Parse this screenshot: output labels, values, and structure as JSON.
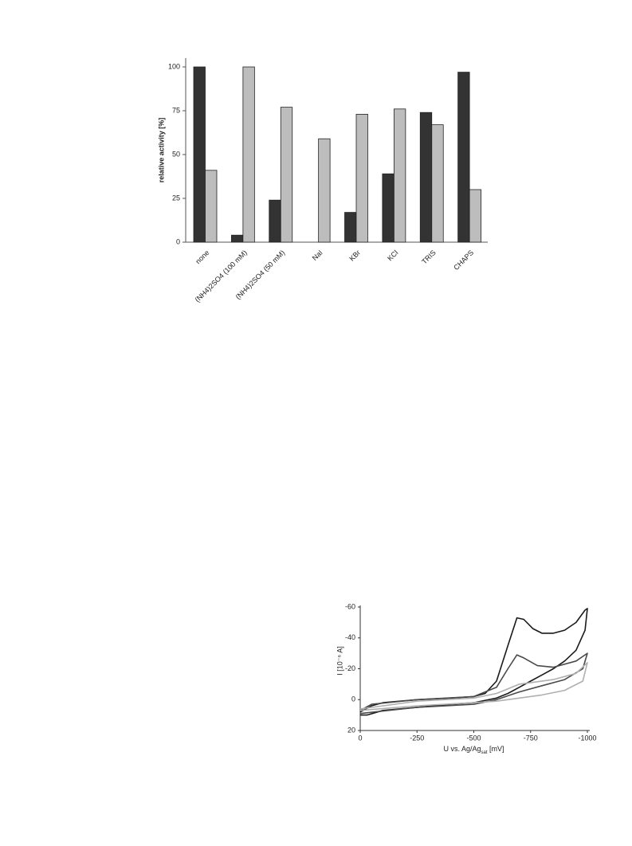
{
  "chart_data": [
    {
      "type": "bar",
      "ylabel": "relative activity [%]",
      "categories": [
        "none",
        "(NH4)2SO4 (100 mM)",
        "(NH4)2SO4 (50 mM)",
        "NaI",
        "KBr",
        "KCl",
        "TRIS",
        "CHAPS"
      ],
      "series": [
        {
          "color": "#333333",
          "values": [
            100,
            4,
            24,
            0,
            17,
            39,
            74,
            97
          ]
        },
        {
          "color": "#bdbdbd",
          "values": [
            41,
            100,
            77,
            59,
            73,
            76,
            67,
            30
          ]
        }
      ],
      "ylim": [
        0,
        105
      ],
      "yticks": [
        0,
        25,
        50,
        75,
        100
      ],
      "grid": false
    },
    {
      "type": "line",
      "ylabel": "I [10⁻⁶ A]",
      "xlabel": [
        "U vs. Ag/Ag",
        "sat",
        " [mV]"
      ],
      "xlim": [
        0,
        -1000
      ],
      "xticks": [
        0,
        -250,
        -500,
        -750,
        -1000
      ],
      "ylim": [
        20,
        -60
      ],
      "yticks": [
        20,
        0,
        -20,
        -40,
        -60
      ],
      "series": [
        {
          "color": "#1a1a1a",
          "x": [
            0,
            -50,
            -100,
            -250,
            -400,
            -500,
            -550,
            -600,
            -650,
            -690,
            -720,
            -760,
            -800,
            -850,
            -900,
            -950,
            -990,
            -1000,
            -990,
            -950,
            -900,
            -850,
            -800,
            -750,
            -700,
            -650,
            -600,
            -500,
            -400,
            -250,
            -100,
            -30,
            0
          ],
          "values": [
            8,
            4,
            2,
            0,
            -1,
            -2,
            -4,
            -12,
            -35,
            -53,
            -52,
            -46,
            -43,
            -43,
            -45,
            -50,
            -58,
            -59,
            -45,
            -32,
            -25,
            -20,
            -16,
            -12,
            -8,
            -4,
            -1,
            2,
            3,
            5,
            7,
            10,
            10
          ]
        },
        {
          "color": "#4a4a4a",
          "x": [
            0,
            -50,
            -250,
            -500,
            -600,
            -650,
            -690,
            -720,
            -780,
            -850,
            -950,
            -1000,
            -980,
            -900,
            -800,
            -700,
            -600,
            -500,
            -250,
            0
          ],
          "values": [
            7,
            3,
            0,
            -2,
            -8,
            -20,
            -29,
            -27,
            -22,
            -21,
            -25,
            -30,
            -20,
            -13,
            -9,
            -5,
            0,
            3,
            5,
            9
          ]
        },
        {
          "color": "#b0b0b0",
          "x": [
            0,
            -250,
            -500,
            -600,
            -700,
            -750,
            -850,
            -950,
            -1000,
            -980,
            -900,
            -800,
            -700,
            -600,
            -500,
            -250,
            0
          ],
          "values": [
            6,
            1,
            -1,
            -4,
            -10,
            -11,
            -13,
            -17,
            -24,
            -12,
            -6,
            -3,
            -1,
            1,
            2,
            4,
            7
          ]
        }
      ]
    }
  ]
}
